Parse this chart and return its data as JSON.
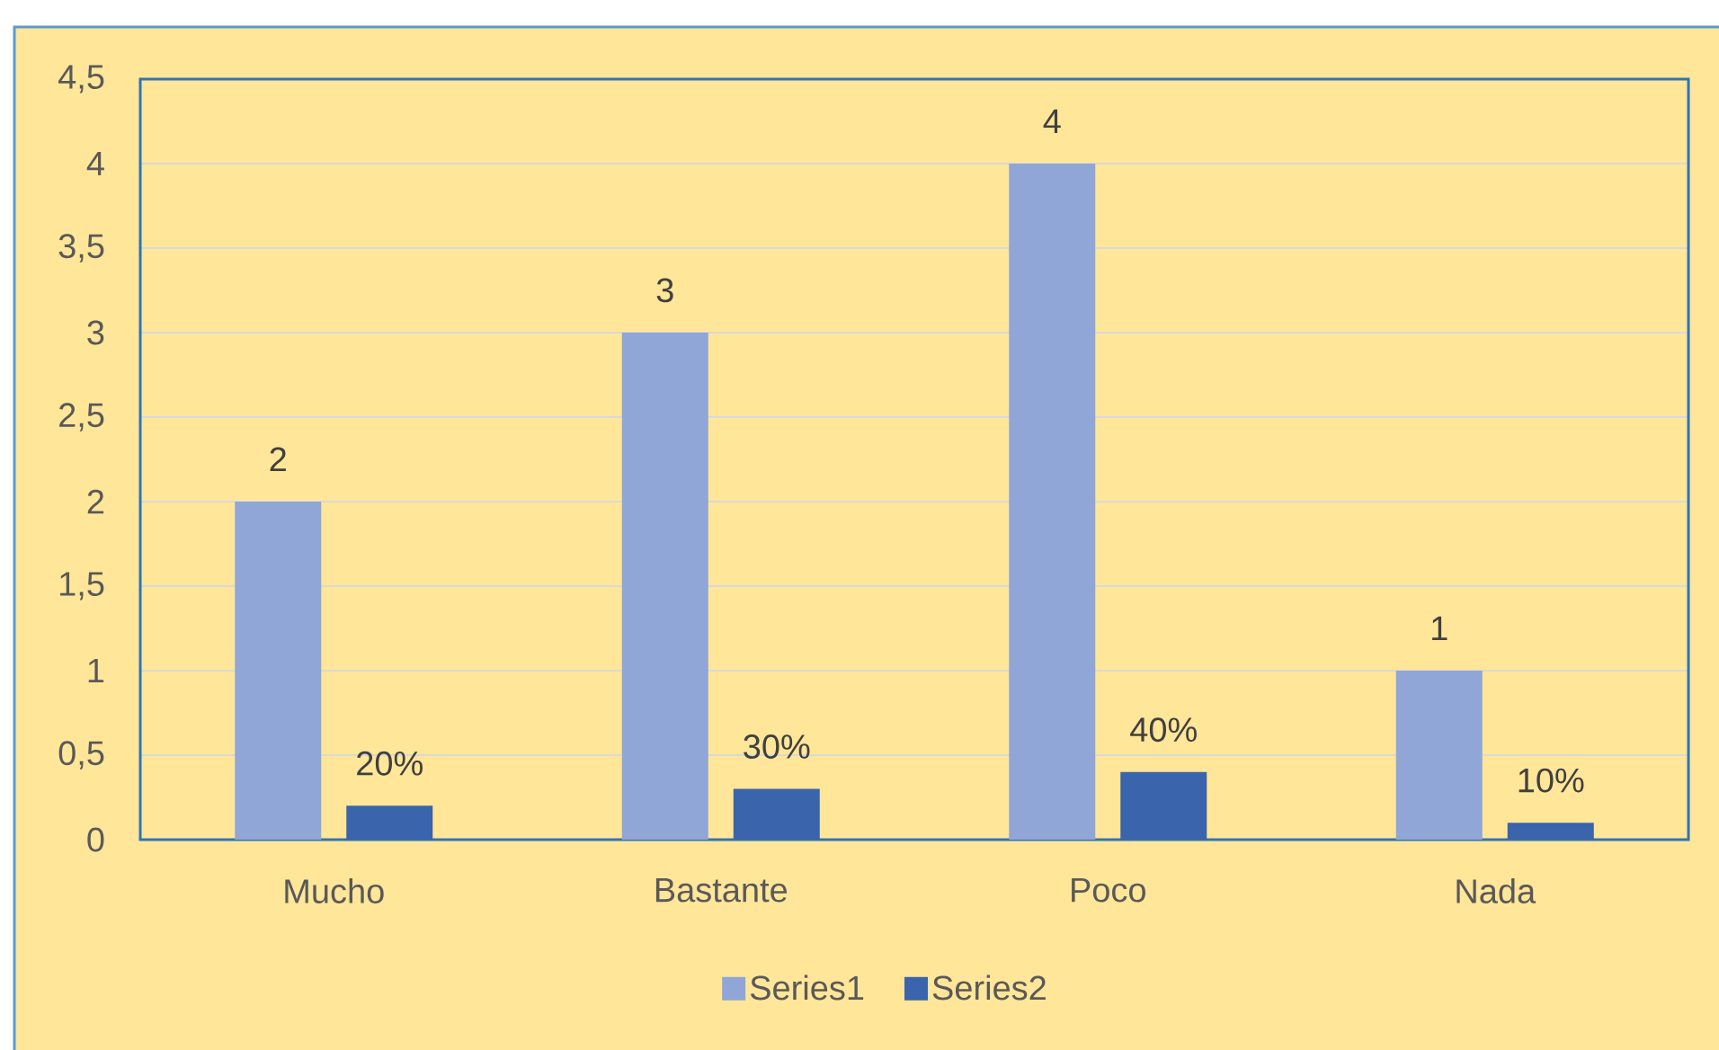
{
  "chart_data": {
    "type": "bar",
    "categories": [
      "Mucho",
      "Bastante",
      "Poco",
      "Nada"
    ],
    "series": [
      {
        "name": "Series1",
        "color": "#8FA6D6",
        "values": [
          2,
          3,
          4,
          1
        ],
        "value_labels": [
          "2",
          "3",
          "4",
          "1"
        ]
      },
      {
        "name": "Series2",
        "color": "#3A64AC",
        "values": [
          0.2,
          0.3,
          0.4,
          0.1
        ],
        "value_labels": [
          "20%",
          "30%",
          "40%",
          "10%"
        ]
      }
    ],
    "ylim": [
      0,
      4.5
    ],
    "yticks": [
      0,
      {
        "value": 0.5,
        "label": "0,5"
      },
      1,
      {
        "value": 1.5,
        "label": "1,5"
      },
      2,
      {
        "value": 2.5,
        "label": "2,5"
      },
      3,
      {
        "value": 3.5,
        "label": "3,5"
      },
      4,
      {
        "value": 4.5,
        "label": "4,5"
      }
    ],
    "grid": "y",
    "legend": "bottom"
  }
}
